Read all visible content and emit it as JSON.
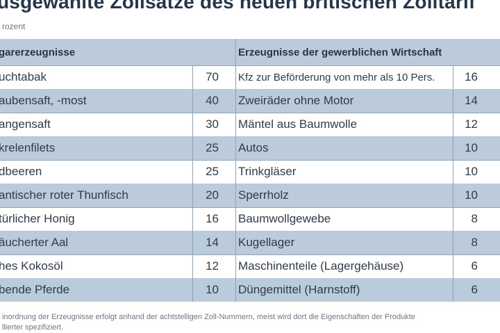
{
  "title": "usgewählte Zollsätze des neuen britischen Zolltarif",
  "unit": "rozent",
  "headers": {
    "left": "garerzeugnisse",
    "right": "Erzeugnisse der gewerblichen Wirtschaft"
  },
  "rows": [
    {
      "a_name": "uchtabak",
      "a_value": "70",
      "b_name": "Kfz zur Beförderung von mehr als 10 Pers.",
      "b_value": "16"
    },
    {
      "a_name": "aubensaft, -most",
      "a_value": "40",
      "b_name": "Zweiräder ohne Motor",
      "b_value": "14"
    },
    {
      "a_name": "angensaft",
      "a_value": "30",
      "b_name": "Mäntel aus Baumwolle",
      "b_value": "12"
    },
    {
      "a_name": "krelenfilets",
      "a_value": "25",
      "b_name": "Autos",
      "b_value": "10"
    },
    {
      "a_name": "dbeeren",
      "a_value": "25",
      "b_name": "Trinkgläser",
      "b_value": "10"
    },
    {
      "a_name": "antischer roter Thunfisch",
      "a_value": "20",
      "b_name": "Sperrholz",
      "b_value": "10"
    },
    {
      "a_name": "türlicher Honig",
      "a_value": "16",
      "b_name": "Baumwollgewebe",
      "b_value": "8"
    },
    {
      "a_name": "äucherter Aal",
      "a_value": "14",
      "b_name": "Kugellager",
      "b_value": "8"
    },
    {
      "a_name": "hes Kokosöl",
      "a_value": "12",
      "b_name": "Maschinenteile (Lagergehäuse)",
      "b_value": "6"
    },
    {
      "a_name": "bende Pferde",
      "a_value": "10",
      "b_name": "Düngemittel (Harnstoff)",
      "b_value": "6"
    }
  ],
  "footnote": {
    "line1": "inordnung der Erzeugnisse erfolgt anhand der achtstelligen Zoll-Nummern, meist wird dort die Eigenschaften der Produkte",
    "line2": "llierter spezifiziert."
  }
}
